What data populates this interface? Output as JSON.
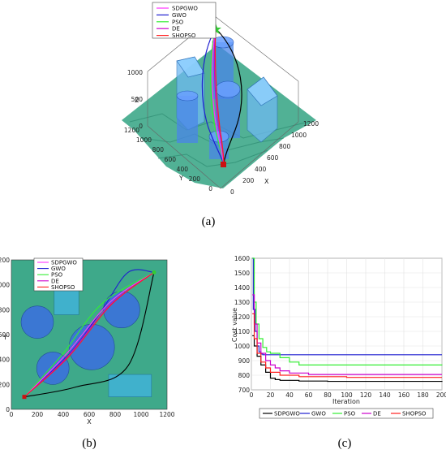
{
  "colors": {
    "SDPGWO": "#ff33ff",
    "GWO": "#1f1fd0",
    "PSO": "#33ee33",
    "DE": "#cc00cc",
    "SHOPSO": "#ff2020",
    "terrain": "#3ea98a",
    "obstacle": "#3b6fe0",
    "black": "#000000"
  },
  "chart_data": [
    {
      "id": "a",
      "type": "surface3d",
      "panel_label": "(a)",
      "legend": [
        "SDPGWO",
        "GWO",
        "PSO",
        "DE",
        "SHOPSO"
      ],
      "xlabel": "X",
      "ylabel": "Y",
      "zlabel": "Z",
      "x_ticks": [
        "0",
        "200",
        "400",
        "600",
        "800",
        "1000",
        "1200"
      ],
      "y_ticks": [
        "0",
        "200",
        "400",
        "600",
        "800",
        "1000",
        "1200"
      ],
      "z_ticks": [
        "0",
        "500",
        "1000"
      ],
      "xlim": [
        0,
        1200
      ],
      "ylim": [
        0,
        1200
      ],
      "zlim": [
        0,
        1000
      ]
    },
    {
      "id": "b",
      "type": "path-map",
      "panel_label": "(b)",
      "xlabel": "X",
      "ylabel": "Y",
      "xlim": [
        0,
        1200
      ],
      "ylim": [
        0,
        1200
      ],
      "x_ticks": [
        0,
        200,
        400,
        600,
        800,
        1000,
        1200
      ],
      "y_ticks": [
        0,
        200,
        400,
        600,
        800,
        1000,
        1200
      ],
      "legend": [
        "SDPGWO",
        "GWO",
        "PSO",
        "DE",
        "SHOPSO"
      ],
      "start": [
        100,
        100
      ],
      "goal": [
        1100,
        1100
      ],
      "circles": [
        {
          "x": 200,
          "y": 700,
          "r": 125
        },
        {
          "x": 320,
          "y": 330,
          "r": 125
        },
        {
          "x": 620,
          "y": 500,
          "r": 175
        },
        {
          "x": 850,
          "y": 800,
          "r": 140
        }
      ],
      "rects": [
        {
          "x0": 330,
          "x1": 520,
          "y0": 760,
          "y1": 1040
        },
        {
          "x0": 750,
          "x1": 1080,
          "y0": 100,
          "y1": 280
        }
      ],
      "paths": [
        {
          "name": "GWO",
          "points": [
            [
              100,
              100
            ],
            [
              450,
              450
            ],
            [
              700,
              800
            ],
            [
              900,
              1100
            ],
            [
              1100,
              1100
            ]
          ]
        },
        {
          "name": "black",
          "points": [
            [
              100,
              100
            ],
            [
              500,
              180
            ],
            [
              900,
              350
            ],
            [
              1100,
              1100
            ]
          ]
        },
        {
          "name": "PSO",
          "points": [
            [
              100,
              100
            ],
            [
              400,
              450
            ],
            [
              700,
              850
            ],
            [
              1100,
              1100
            ]
          ]
        },
        {
          "name": "SDPGWO",
          "points": [
            [
              100,
              100
            ],
            [
              420,
              440
            ],
            [
              760,
              860
            ],
            [
              1100,
              1100
            ]
          ]
        },
        {
          "name": "DE",
          "points": [
            [
              100,
              100
            ],
            [
              430,
              420
            ],
            [
              760,
              840
            ],
            [
              1100,
              1100
            ]
          ]
        },
        {
          "name": "SHOPSO",
          "points": [
            [
              100,
              100
            ],
            [
              440,
              420
            ],
            [
              770,
              840
            ],
            [
              1100,
              1100
            ]
          ]
        }
      ]
    },
    {
      "id": "c",
      "type": "line",
      "panel_label": "(c)",
      "xlabel": "Iteration",
      "ylabel": "Cost value",
      "xlim": [
        0,
        200
      ],
      "ylim": [
        700,
        1600
      ],
      "x_ticks": [
        0,
        20,
        40,
        60,
        80,
        100,
        120,
        140,
        160,
        180,
        200
      ],
      "y_ticks": [
        700,
        800,
        900,
        1000,
        1100,
        1200,
        1300,
        1400,
        1500,
        1600
      ],
      "legend": [
        "SDPGWO",
        "GWO",
        "PSO",
        "DE",
        "SHOPSO"
      ],
      "series": [
        {
          "name": "SDPGWO",
          "color": "#000000",
          "x": [
            1,
            3,
            6,
            10,
            15,
            20,
            25,
            30,
            50,
            80,
            200
          ],
          "y": [
            1070,
            1000,
            930,
            870,
            820,
            780,
            770,
            765,
            760,
            758,
            755
          ]
        },
        {
          "name": "GWO",
          "color": "#1f1fd0",
          "x": [
            1,
            2,
            4,
            6,
            8,
            10,
            12,
            15,
            200
          ],
          "y": [
            1600,
            1250,
            1100,
            1000,
            960,
            945,
            940,
            940,
            940
          ]
        },
        {
          "name": "PSO",
          "color": "#33ee33",
          "x": [
            1,
            3,
            5,
            8,
            12,
            16,
            20,
            30,
            40,
            50,
            200
          ],
          "y": [
            1600,
            1300,
            1150,
            1050,
            990,
            960,
            950,
            920,
            890,
            870,
            868
          ]
        },
        {
          "name": "DE",
          "color": "#cc00cc",
          "x": [
            1,
            3,
            6,
            10,
            15,
            20,
            25,
            30,
            40,
            60,
            200
          ],
          "y": [
            1350,
            1150,
            1020,
            950,
            900,
            870,
            850,
            830,
            815,
            805,
            805
          ]
        },
        {
          "name": "SHOPSO",
          "color": "#ff2020",
          "x": [
            1,
            3,
            6,
            10,
            15,
            20,
            30,
            50,
            100,
            200
          ],
          "y": [
            1220,
            1050,
            950,
            890,
            850,
            820,
            800,
            790,
            785,
            785
          ]
        }
      ]
    }
  ]
}
